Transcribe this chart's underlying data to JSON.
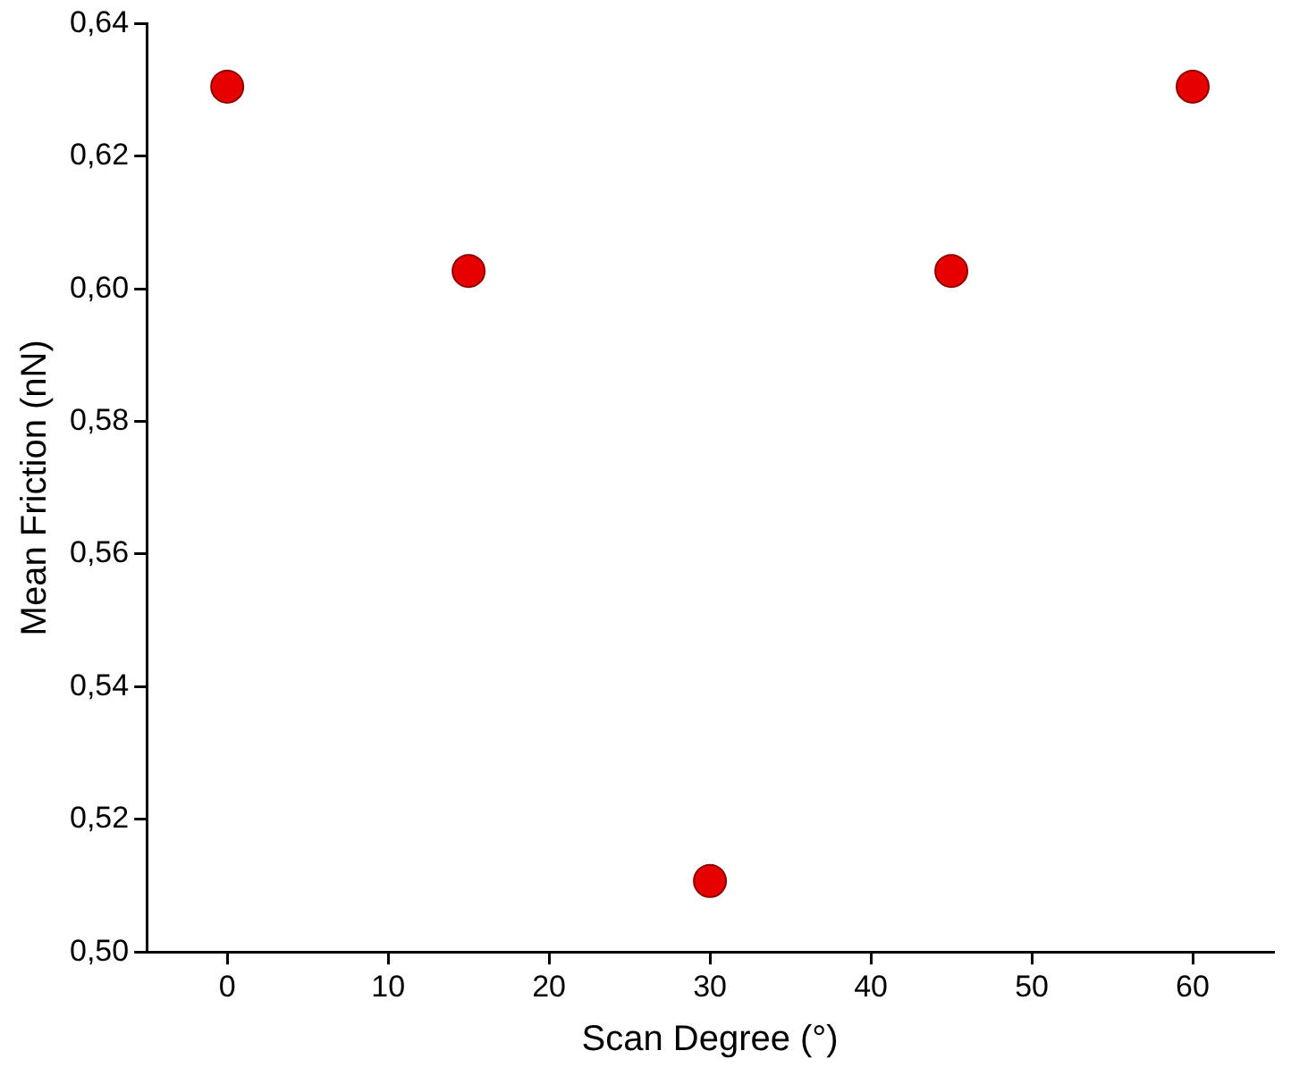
{
  "chart_data": {
    "type": "scatter",
    "xlabel": "Scan Degree (°)",
    "ylabel": "Mean Friction (nN)",
    "x": [
      0,
      15,
      30,
      45,
      60
    ],
    "series": [
      {
        "color": "#e60000",
        "values": [
          0.6305,
          0.6027,
          0.5107,
          0.6027,
          0.6305
        ]
      }
    ],
    "xlim": [
      -5,
      65
    ],
    "xticks": [
      0,
      10,
      20,
      30,
      40,
      50,
      60
    ],
    "ylim": [
      0.5,
      0.64
    ],
    "yticks": [
      {
        "value": 0.5,
        "label": "0,50"
      },
      {
        "value": 0.52,
        "label": "0,52"
      },
      {
        "value": 0.54,
        "label": "0,54"
      },
      {
        "value": 0.56,
        "label": "0,56"
      },
      {
        "value": 0.58,
        "label": "0,58"
      },
      {
        "value": 0.6,
        "label": "0,60"
      },
      {
        "value": 0.62,
        "label": "0,62"
      },
      {
        "value": 0.64,
        "label": "0,64"
      }
    ],
    "grid": false,
    "legend": false,
    "marker": "circle"
  }
}
